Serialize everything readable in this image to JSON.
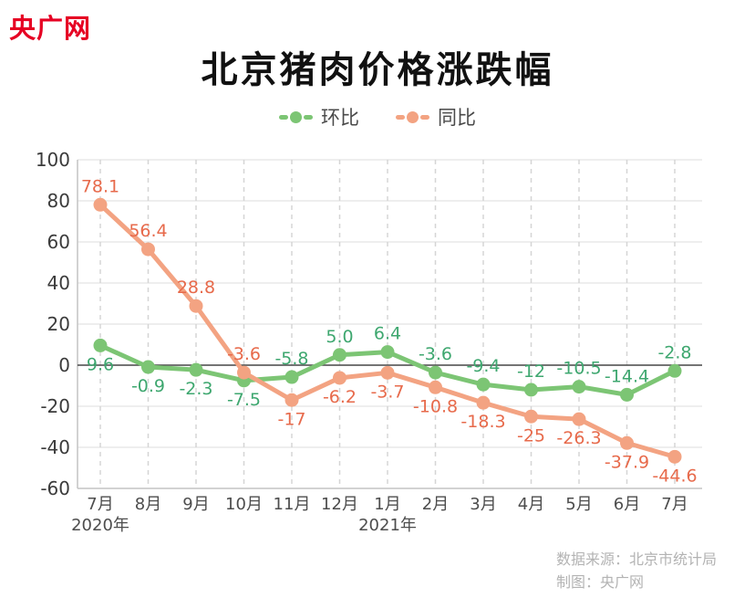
{
  "logo": "央广网",
  "title": "北京猪肉价格涨跌幅",
  "source": {
    "line1": "数据来源：北京市统计局",
    "line2": "制图：央广网"
  },
  "colors": {
    "logo_red": "#e60023",
    "grid_line": "#dcdcdc",
    "grid_dashed": "#d5d5d5",
    "axis_line": "#c4c4c4",
    "zero_line": "#474747",
    "y_tick_text": "#3b3b3b",
    "x_tick_text": "#4d4d4d"
  },
  "chart_data": {
    "type": "line",
    "title": "北京猪肉价格涨跌幅",
    "categories": [
      "7月",
      "8月",
      "9月",
      "10月",
      "11月",
      "12月",
      "1月",
      "2月",
      "3月",
      "4月",
      "5月",
      "6月",
      "7月"
    ],
    "year_labels": [
      {
        "index": 0,
        "label": "2020年"
      },
      {
        "index": 6,
        "label": "2021年"
      }
    ],
    "ylim": [
      -60,
      100
    ],
    "yticks": [
      100,
      80,
      60,
      40,
      20,
      0,
      -20,
      -40,
      -60
    ],
    "grid": true,
    "legend_position": "top",
    "series": [
      {
        "name": "环比",
        "line_color": "#7cc574",
        "label_color": "#3ea76f",
        "values": [
          9.6,
          -0.9,
          -2.3,
          -7.5,
          -5.8,
          5.0,
          6.4,
          -3.6,
          -9.4,
          -12,
          -10.5,
          -14.4,
          -2.8
        ],
        "labels": [
          "9.6",
          "-0.9",
          "-2.3",
          "-7.5",
          "-5.8",
          "5.0",
          "6.4",
          "-3.6",
          "-9.4",
          "-12",
          "-10.5",
          "-14.4",
          "-2.8"
        ],
        "label_side": [
          "below",
          "below",
          "below",
          "below",
          "above",
          "above",
          "above",
          "above",
          "above",
          "above",
          "above",
          "above",
          "above"
        ]
      },
      {
        "name": "同比",
        "line_color": "#f3a382",
        "label_color": "#e76a4b",
        "values": [
          78.1,
          56.4,
          28.8,
          -3.6,
          -17,
          -6.2,
          -3.7,
          -10.8,
          -18.3,
          -25,
          -26.3,
          -37.9,
          -44.6
        ],
        "labels": [
          "78.1",
          "56.4",
          "28.8",
          "-3.6",
          "-17",
          "-6.2",
          "-3.7",
          "-10.8",
          "-18.3",
          "-25",
          "-26.3",
          "-37.9",
          "-44.6"
        ],
        "label_side": [
          "above",
          "above",
          "above",
          "above",
          "below",
          "below",
          "below",
          "below",
          "below",
          "below",
          "below",
          "below",
          "below"
        ]
      }
    ]
  }
}
